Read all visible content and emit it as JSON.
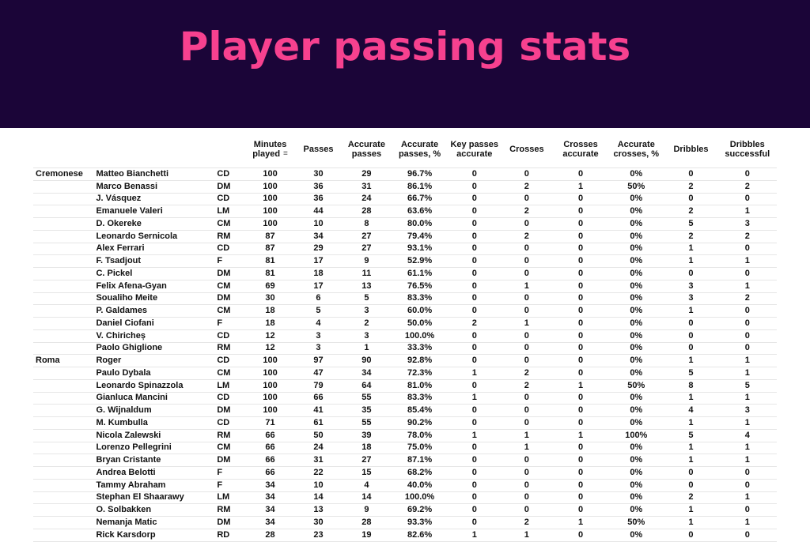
{
  "banner": {
    "title": "Player passing stats"
  },
  "columns": {
    "minutes_played": "Minutes played",
    "passes": "Passes",
    "accurate_passes": "Accurate passes",
    "accurate_passes_pct": "Accurate passes, %",
    "key_passes_accurate": "Key passes accurate",
    "crosses": "Crosses",
    "crosses_accurate": "Crosses accurate",
    "accurate_crosses_pct": "Accurate crosses, %",
    "dribbles": "Dribbles",
    "dribbles_successful": "Dribbles successful"
  },
  "rows": [
    {
      "team": "Cremonese",
      "name": "Matteo Bianchetti",
      "pos": "CD",
      "min": "100",
      "passes": "30",
      "acc": "29",
      "accp": "96.7%",
      "key": "0",
      "cr": "0",
      "cra": "0",
      "crap": "0%",
      "dr": "0",
      "drs": "0"
    },
    {
      "team": "",
      "name": "Marco Benassi",
      "pos": "DM",
      "min": "100",
      "passes": "36",
      "acc": "31",
      "accp": "86.1%",
      "key": "0",
      "cr": "2",
      "cra": "1",
      "crap": "50%",
      "dr": "2",
      "drs": "2"
    },
    {
      "team": "",
      "name": "J. Vásquez",
      "pos": "CD",
      "min": "100",
      "passes": "36",
      "acc": "24",
      "accp": "66.7%",
      "key": "0",
      "cr": "0",
      "cra": "0",
      "crap": "0%",
      "dr": "0",
      "drs": "0"
    },
    {
      "team": "",
      "name": "Emanuele Valeri",
      "pos": "LM",
      "min": "100",
      "passes": "44",
      "acc": "28",
      "accp": "63.6%",
      "key": "0",
      "cr": "2",
      "cra": "0",
      "crap": "0%",
      "dr": "2",
      "drs": "1"
    },
    {
      "team": "",
      "name": "D. Okereke",
      "pos": "CM",
      "min": "100",
      "passes": "10",
      "acc": "8",
      "accp": "80.0%",
      "key": "0",
      "cr": "0",
      "cra": "0",
      "crap": "0%",
      "dr": "5",
      "drs": "3"
    },
    {
      "team": "",
      "name": "Leonardo Sernicola",
      "pos": "RM",
      "min": "87",
      "passes": "34",
      "acc": "27",
      "accp": "79.4%",
      "key": "0",
      "cr": "2",
      "cra": "0",
      "crap": "0%",
      "dr": "2",
      "drs": "2"
    },
    {
      "team": "",
      "name": "Alex Ferrari",
      "pos": "CD",
      "min": "87",
      "passes": "29",
      "acc": "27",
      "accp": "93.1%",
      "key": "0",
      "cr": "0",
      "cra": "0",
      "crap": "0%",
      "dr": "1",
      "drs": "0"
    },
    {
      "team": "",
      "name": "F. Tsadjout",
      "pos": "F",
      "min": "81",
      "passes": "17",
      "acc": "9",
      "accp": "52.9%",
      "key": "0",
      "cr": "0",
      "cra": "0",
      "crap": "0%",
      "dr": "1",
      "drs": "1"
    },
    {
      "team": "",
      "name": "C. Pickel",
      "pos": "DM",
      "min": "81",
      "passes": "18",
      "acc": "11",
      "accp": "61.1%",
      "key": "0",
      "cr": "0",
      "cra": "0",
      "crap": "0%",
      "dr": "0",
      "drs": "0"
    },
    {
      "team": "",
      "name": "Felix Afena-Gyan",
      "pos": "CM",
      "min": "69",
      "passes": "17",
      "acc": "13",
      "accp": "76.5%",
      "key": "0",
      "cr": "1",
      "cra": "0",
      "crap": "0%",
      "dr": "3",
      "drs": "1"
    },
    {
      "team": "",
      "name": "Soualiho Meite",
      "pos": "DM",
      "min": "30",
      "passes": "6",
      "acc": "5",
      "accp": "83.3%",
      "key": "0",
      "cr": "0",
      "cra": "0",
      "crap": "0%",
      "dr": "3",
      "drs": "2"
    },
    {
      "team": "",
      "name": "P. Galdames",
      "pos": "CM",
      "min": "18",
      "passes": "5",
      "acc": "3",
      "accp": "60.0%",
      "key": "0",
      "cr": "0",
      "cra": "0",
      "crap": "0%",
      "dr": "1",
      "drs": "0"
    },
    {
      "team": "",
      "name": "Daniel Ciofani",
      "pos": "F",
      "min": "18",
      "passes": "4",
      "acc": "2",
      "accp": "50.0%",
      "key": "2",
      "cr": "1",
      "cra": "0",
      "crap": "0%",
      "dr": "0",
      "drs": "0"
    },
    {
      "team": "",
      "name": "V. Chiricheș",
      "pos": "CD",
      "min": "12",
      "passes": "3",
      "acc": "3",
      "accp": "100.0%",
      "key": "0",
      "cr": "0",
      "cra": "0",
      "crap": "0%",
      "dr": "0",
      "drs": "0"
    },
    {
      "team": "",
      "name": "Paolo Ghiglione",
      "pos": "RM",
      "min": "12",
      "passes": "3",
      "acc": "1",
      "accp": "33.3%",
      "key": "0",
      "cr": "0",
      "cra": "0",
      "crap": "0%",
      "dr": "0",
      "drs": "0"
    },
    {
      "team": "Roma",
      "name": "Roger",
      "pos": "CD",
      "min": "100",
      "passes": "97",
      "acc": "90",
      "accp": "92.8%",
      "key": "0",
      "cr": "0",
      "cra": "0",
      "crap": "0%",
      "dr": "1",
      "drs": "1"
    },
    {
      "team": "",
      "name": "Paulo Dybala",
      "pos": "CM",
      "min": "100",
      "passes": "47",
      "acc": "34",
      "accp": "72.3%",
      "key": "1",
      "cr": "2",
      "cra": "0",
      "crap": "0%",
      "dr": "5",
      "drs": "1"
    },
    {
      "team": "",
      "name": "Leonardo Spinazzola",
      "pos": "LM",
      "min": "100",
      "passes": "79",
      "acc": "64",
      "accp": "81.0%",
      "key": "0",
      "cr": "2",
      "cra": "1",
      "crap": "50%",
      "dr": "8",
      "drs": "5"
    },
    {
      "team": "",
      "name": "Gianluca Mancini",
      "pos": "CD",
      "min": "100",
      "passes": "66",
      "acc": "55",
      "accp": "83.3%",
      "key": "1",
      "cr": "0",
      "cra": "0",
      "crap": "0%",
      "dr": "1",
      "drs": "1"
    },
    {
      "team": "",
      "name": "G. Wijnaldum",
      "pos": "DM",
      "min": "100",
      "passes": "41",
      "acc": "35",
      "accp": "85.4%",
      "key": "0",
      "cr": "0",
      "cra": "0",
      "crap": "0%",
      "dr": "4",
      "drs": "3"
    },
    {
      "team": "",
      "name": "M. Kumbulla",
      "pos": "CD",
      "min": "71",
      "passes": "61",
      "acc": "55",
      "accp": "90.2%",
      "key": "0",
      "cr": "0",
      "cra": "0",
      "crap": "0%",
      "dr": "1",
      "drs": "1"
    },
    {
      "team": "",
      "name": "Nicola Zalewski",
      "pos": "RM",
      "min": "66",
      "passes": "50",
      "acc": "39",
      "accp": "78.0%",
      "key": "1",
      "cr": "1",
      "cra": "1",
      "crap": "100%",
      "dr": "5",
      "drs": "4"
    },
    {
      "team": "",
      "name": "Lorenzo Pellegrini",
      "pos": "CM",
      "min": "66",
      "passes": "24",
      "acc": "18",
      "accp": "75.0%",
      "key": "0",
      "cr": "1",
      "cra": "0",
      "crap": "0%",
      "dr": "1",
      "drs": "1"
    },
    {
      "team": "",
      "name": "Bryan Cristante",
      "pos": "DM",
      "min": "66",
      "passes": "31",
      "acc": "27",
      "accp": "87.1%",
      "key": "0",
      "cr": "0",
      "cra": "0",
      "crap": "0%",
      "dr": "1",
      "drs": "1"
    },
    {
      "team": "",
      "name": "Andrea Belotti",
      "pos": "F",
      "min": "66",
      "passes": "22",
      "acc": "15",
      "accp": "68.2%",
      "key": "0",
      "cr": "0",
      "cra": "0",
      "crap": "0%",
      "dr": "0",
      "drs": "0"
    },
    {
      "team": "",
      "name": "Tammy Abraham",
      "pos": "F",
      "min": "34",
      "passes": "10",
      "acc": "4",
      "accp": "40.0%",
      "key": "0",
      "cr": "0",
      "cra": "0",
      "crap": "0%",
      "dr": "0",
      "drs": "0"
    },
    {
      "team": "",
      "name": "Stephan El Shaarawy",
      "pos": "LM",
      "min": "34",
      "passes": "14",
      "acc": "14",
      "accp": "100.0%",
      "key": "0",
      "cr": "0",
      "cra": "0",
      "crap": "0%",
      "dr": "2",
      "drs": "1"
    },
    {
      "team": "",
      "name": "O. Solbakken",
      "pos": "RM",
      "min": "34",
      "passes": "13",
      "acc": "9",
      "accp": "69.2%",
      "key": "0",
      "cr": "0",
      "cra": "0",
      "crap": "0%",
      "dr": "1",
      "drs": "0"
    },
    {
      "team": "",
      "name": "Nemanja Matic",
      "pos": "DM",
      "min": "34",
      "passes": "30",
      "acc": "28",
      "accp": "93.3%",
      "key": "0",
      "cr": "2",
      "cra": "1",
      "crap": "50%",
      "dr": "1",
      "drs": "1"
    },
    {
      "team": "",
      "name": "Rick Karsdorp",
      "pos": "RD",
      "min": "28",
      "passes": "23",
      "acc": "19",
      "accp": "82.6%",
      "key": "1",
      "cr": "1",
      "cra": "0",
      "crap": "0%",
      "dr": "0",
      "drs": "0"
    }
  ]
}
